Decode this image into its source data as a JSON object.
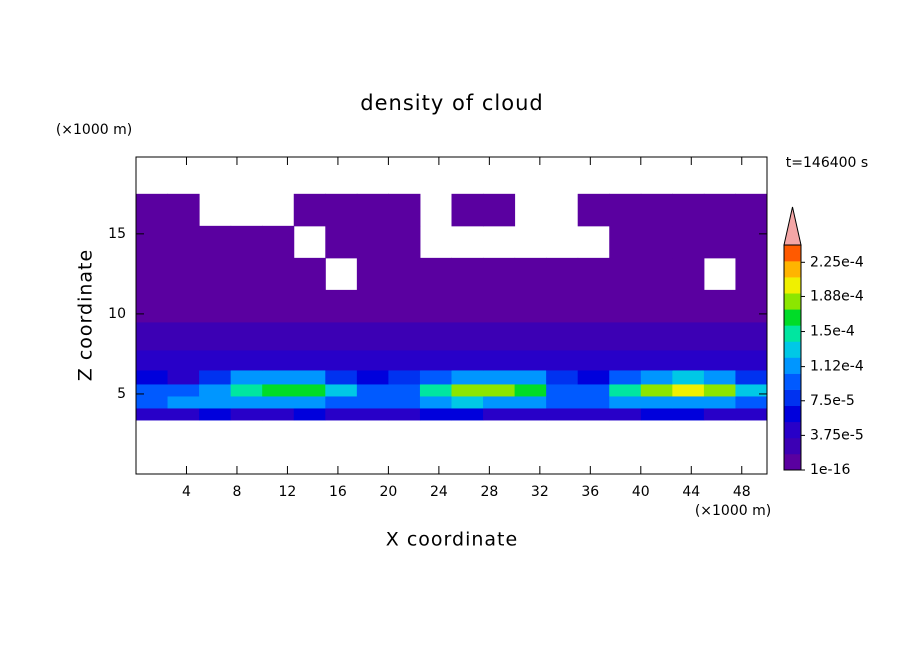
{
  "chart_data": {
    "type": "contour",
    "title": "density of cloud",
    "time_label": "t=146400 s",
    "x_label": "X coordinate",
    "y_label": "Z coordinate",
    "x_unit": "(×1000 m)",
    "y_unit": "(×1000 m)",
    "xlim": [
      0,
      50
    ],
    "ylim": [
      0,
      19.8
    ],
    "xticks": [
      4,
      8,
      12,
      16,
      20,
      24,
      28,
      32,
      36,
      40,
      44,
      48
    ],
    "yticks": [
      5,
      10,
      15
    ],
    "x": [
      1.25,
      3.75,
      6.25,
      8.75,
      11.25,
      13.75,
      16.25,
      18.75,
      21.25,
      23.75,
      26.25,
      28.75,
      31.25,
      33.75,
      36.25,
      38.75,
      41.25,
      43.75,
      46.25,
      48.75
    ],
    "y": [
      3.75,
      4.5,
      5.25,
      6,
      7,
      8.5,
      10.5,
      12.5,
      14.5,
      16.5
    ],
    "z": [
      [
        5e-05,
        5e-05,
        6e-05,
        5e-05,
        5e-05,
        6e-05,
        5e-05,
        5e-05,
        5e-05,
        6e-05,
        6e-05,
        5e-05,
        5e-05,
        4e-05,
        5e-05,
        5e-05,
        6e-05,
        6e-05,
        5e-05,
        5e-05
      ],
      [
        0.0001,
        0.00011,
        0.00012,
        0.00012,
        0.00011,
        0.00011,
        0.0001,
        9e-05,
        0.0001,
        0.00012,
        0.00013,
        0.00012,
        0.00011,
        9e-05,
        0.0001,
        0.00011,
        0.00012,
        0.00012,
        0.00011,
        0.0001
      ],
      [
        9e-05,
        9e-05,
        0.00011,
        0.00015,
        0.00017,
        0.00016,
        0.00013,
        9e-05,
        0.0001,
        0.00015,
        0.00019,
        0.00018,
        0.00016,
        0.0001,
        0.0001,
        0.00014,
        0.00019,
        0.0002,
        0.00019,
        0.00013
      ],
      [
        6e-05,
        5e-05,
        8e-05,
        0.00011,
        0.00012,
        0.00011,
        7e-05,
        6e-05,
        7e-05,
        9e-05,
        0.00012,
        0.00011,
        0.00012,
        7e-05,
        6e-05,
        9e-05,
        0.00012,
        0.00013,
        0.00012,
        8e-05
      ],
      [
        4e-05,
        4e-05,
        5e-05,
        4e-05,
        4e-05,
        5e-05,
        4e-05,
        4e-05,
        4e-05,
        5e-05,
        4e-05,
        4e-05,
        5e-05,
        4e-05,
        4e-05,
        4e-05,
        5e-05,
        4e-05,
        4e-05,
        4e-05
      ],
      [
        3e-05,
        2e-05,
        2e-05,
        3e-05,
        2e-05,
        3e-05,
        2e-05,
        2e-05,
        2e-05,
        3e-05,
        2e-05,
        2e-05,
        3e-05,
        2e-05,
        2e-05,
        2e-05,
        2e-05,
        3e-05,
        2e-05,
        3e-05
      ],
      [
        1e-05,
        1e-05,
        1e-16,
        1e-05,
        1e-05,
        1e-16,
        1e-05,
        1e-16,
        1e-16,
        1e-05,
        1e-05,
        1e-16,
        1e-05,
        1e-05,
        1e-16,
        1e-05,
        1e-05,
        1e-05,
        1e-16,
        1e-05
      ],
      [
        1e-16,
        1e-16,
        1e-16,
        1e-16,
        1e-16,
        1e-16,
        null,
        1e-16,
        1e-16,
        1e-16,
        1e-16,
        1e-16,
        1e-16,
        1e-16,
        1e-16,
        1e-16,
        1e-16,
        1e-16,
        null,
        1e-16
      ],
      [
        1e-16,
        1e-16,
        1e-16,
        1e-16,
        1e-16,
        null,
        1e-16,
        1e-16,
        1e-16,
        null,
        null,
        null,
        null,
        null,
        null,
        1e-16,
        1e-16,
        1e-16,
        1e-16,
        1e-16
      ],
      [
        1e-16,
        1e-16,
        null,
        null,
        null,
        1e-16,
        1e-16,
        1e-16,
        1e-16,
        null,
        1e-16,
        1e-16,
        null,
        null,
        1e-16,
        1e-16,
        1e-16,
        1e-16,
        1e-16,
        1e-16
      ]
    ],
    "clim": [
      1e-16,
      0.00024375
    ],
    "colors": [
      "#5a00a0",
      "#3c00b4",
      "#2800c8",
      "#0000dc",
      "#0032f0",
      "#005aff",
      "#0096ff",
      "#00c8e6",
      "#00e6a0",
      "#00dc28",
      "#8ce600",
      "#f0f000",
      "#ffb400",
      "#ff5a00"
    ],
    "extend_color": "#f4a6a6",
    "colorbar_ticks": [
      {
        "value": 1e-16,
        "label": "1e-16"
      },
      {
        "value": 3.75e-05,
        "label": "3.75e-5"
      },
      {
        "value": 7.5e-05,
        "label": "7.5e-5"
      },
      {
        "value": 0.000112,
        "label": "1.12e-4"
      },
      {
        "value": 0.00015,
        "label": "1.5e-4"
      },
      {
        "value": 0.000188,
        "label": "1.88e-4"
      },
      {
        "value": 0.000225,
        "label": "2.25e-4"
      }
    ]
  }
}
